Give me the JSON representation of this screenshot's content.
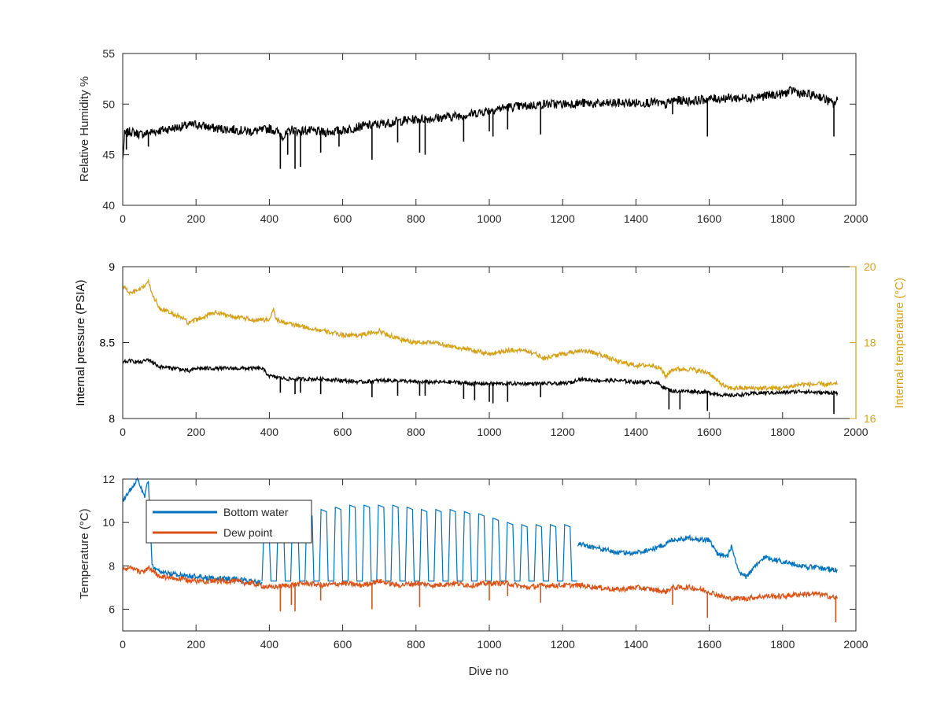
{
  "chart_data": [
    {
      "type": "line",
      "xlabel": "",
      "ylabel": "Relative Humidity %",
      "xlim": [
        0,
        2000
      ],
      "ylim": [
        40,
        55
      ],
      "xticks": [
        "0",
        "200",
        "400",
        "600",
        "800",
        "1000",
        "1200",
        "1400",
        "1600",
        "1800",
        "2000"
      ],
      "yticks": [
        "40",
        "45",
        "50",
        "55"
      ],
      "series": [
        {
          "name": "",
          "color": "#000000",
          "x": [
            0,
            5,
            20,
            50,
            100,
            150,
            200,
            250,
            300,
            350,
            380,
            400,
            420,
            440,
            460,
            480,
            500,
            550,
            600,
            650,
            700,
            750,
            800,
            850,
            900,
            950,
            1000,
            1050,
            1100,
            1150,
            1200,
            1250,
            1300,
            1350,
            1400,
            1450,
            1480,
            1500,
            1550,
            1600,
            1650,
            1700,
            1750,
            1800,
            1830,
            1850,
            1900,
            1940,
            1950
          ],
          "y": [
            44.5,
            47.0,
            47.3,
            47.0,
            47.4,
            47.7,
            48.0,
            47.6,
            47.5,
            47.3,
            47.4,
            47.6,
            47.3,
            46.8,
            47.5,
            47.3,
            47.4,
            47.2,
            47.4,
            47.8,
            48.0,
            48.3,
            48.5,
            48.6,
            48.8,
            49.0,
            49.4,
            49.7,
            49.8,
            50.0,
            50.0,
            50.1,
            50.0,
            50.1,
            50.1,
            50.2,
            49.9,
            50.4,
            50.3,
            50.5,
            50.6,
            50.6,
            50.8,
            51.0,
            51.4,
            51.0,
            50.8,
            50.0,
            50.4
          ]
        }
      ],
      "spikes": {
        "x": [
          10,
          70,
          430,
          450,
          470,
          485,
          540,
          590,
          680,
          750,
          810,
          825,
          930,
          1000,
          1010,
          1050,
          1140,
          1500,
          1595,
          1940
        ],
        "y": [
          45.5,
          45.8,
          43.6,
          45.0,
          43.6,
          43.8,
          45.2,
          45.8,
          44.5,
          46.2,
          45.2,
          45.0,
          46.3,
          47.3,
          46.8,
          47.5,
          47.0,
          49.0,
          46.8,
          46.8
        ]
      }
    },
    {
      "type": "line",
      "xlabel": "",
      "ylabel": "Internal pressure (PSIA)",
      "ylabel_right": "Internal temperature (°C)",
      "xlim": [
        0,
        2000
      ],
      "ylim": [
        8,
        9
      ],
      "ylim_right": [
        16,
        20
      ],
      "xticks": [
        "0",
        "200",
        "400",
        "600",
        "800",
        "1000",
        "1200",
        "1400",
        "1600",
        "1800",
        "2000"
      ],
      "yticks": [
        "8",
        "8.5",
        "9"
      ],
      "yticks_right": [
        "16",
        "18",
        "20"
      ],
      "series": [
        {
          "name": "",
          "axis": "right",
          "color": "#D4A017",
          "x": [
            0,
            20,
            50,
            70,
            80,
            100,
            150,
            170,
            180,
            200,
            250,
            300,
            350,
            400,
            410,
            420,
            450,
            500,
            550,
            600,
            650,
            700,
            750,
            800,
            850,
            900,
            950,
            1000,
            1050,
            1100,
            1150,
            1200,
            1250,
            1300,
            1350,
            1400,
            1450,
            1470,
            1480,
            1500,
            1550,
            1600,
            1620,
            1650,
            1700,
            1750,
            1800,
            1850,
            1900,
            1950
          ],
          "y": [
            19.5,
            19.3,
            19.4,
            19.6,
            19.3,
            18.9,
            18.7,
            18.6,
            18.5,
            18.6,
            18.8,
            18.7,
            18.6,
            18.6,
            18.9,
            18.6,
            18.5,
            18.4,
            18.3,
            18.2,
            18.2,
            18.3,
            18.1,
            18.0,
            18.0,
            17.9,
            17.8,
            17.7,
            17.8,
            17.8,
            17.6,
            17.7,
            17.8,
            17.7,
            17.5,
            17.4,
            17.4,
            17.3,
            17.1,
            17.3,
            17.3,
            17.2,
            17.0,
            16.8,
            16.8,
            16.8,
            16.8,
            16.9,
            16.9,
            16.9
          ]
        },
        {
          "name": "",
          "axis": "left",
          "color": "#000000",
          "x": [
            0,
            20,
            50,
            70,
            100,
            150,
            180,
            200,
            250,
            300,
            350,
            380,
            400,
            450,
            500,
            550,
            600,
            650,
            700,
            750,
            800,
            850,
            900,
            950,
            1000,
            1050,
            1100,
            1150,
            1200,
            1230,
            1240,
            1300,
            1350,
            1400,
            1450,
            1460,
            1480,
            1500,
            1550,
            1600,
            1650,
            1700,
            1750,
            1800,
            1850,
            1900,
            1950
          ],
          "y": [
            8.37,
            8.38,
            8.37,
            8.39,
            8.34,
            8.33,
            8.31,
            8.33,
            8.33,
            8.33,
            8.33,
            8.33,
            8.28,
            8.26,
            8.26,
            8.26,
            8.25,
            8.24,
            8.25,
            8.25,
            8.24,
            8.24,
            8.24,
            8.23,
            8.23,
            8.23,
            8.23,
            8.23,
            8.23,
            8.24,
            8.26,
            8.25,
            8.25,
            8.24,
            8.24,
            8.23,
            8.2,
            8.18,
            8.18,
            8.17,
            8.15,
            8.16,
            8.17,
            8.17,
            8.18,
            8.17,
            8.17
          ]
        }
      ],
      "spikes": {
        "x": [
          430,
          470,
          485,
          540,
          680,
          750,
          810,
          825,
          930,
          960,
          1000,
          1010,
          1050,
          1140,
          1490,
          1520,
          1595,
          1940
        ],
        "y": [
          8.17,
          8.16,
          8.17,
          8.16,
          8.14,
          8.15,
          8.15,
          8.15,
          8.13,
          8.12,
          8.11,
          8.1,
          8.11,
          8.14,
          8.06,
          8.06,
          8.05,
          8.03
        ]
      }
    },
    {
      "type": "line",
      "xlabel": "Dive no",
      "ylabel": "Temperature (°C)",
      "xlim": [
        0,
        2000
      ],
      "ylim": [
        5,
        12
      ],
      "xticks": [
        "0",
        "200",
        "400",
        "600",
        "800",
        "1000",
        "1200",
        "1400",
        "1600",
        "1800",
        "2000"
      ],
      "yticks": [
        "6",
        "8",
        "10",
        "12"
      ],
      "legend_position": "top-left",
      "series": [
        {
          "name": "Bottom water",
          "color": "#0072BD",
          "x": [
            0,
            20,
            40,
            60,
            70,
            80,
            100,
            150,
            200,
            250,
            300,
            350,
            380,
            1250,
            1300,
            1350,
            1400,
            1450,
            1480,
            1500,
            1550,
            1580,
            1600,
            1620,
            1650,
            1660,
            1680,
            1700,
            1750,
            1800,
            1850,
            1900,
            1950
          ],
          "y": [
            11.0,
            11.5,
            12.0,
            11.2,
            12.0,
            8.0,
            7.7,
            7.6,
            7.5,
            7.4,
            7.4,
            7.3,
            7.2,
            9.0,
            8.8,
            8.6,
            8.6,
            8.8,
            9.0,
            9.2,
            9.3,
            9.2,
            9.2,
            8.6,
            8.4,
            8.9,
            7.7,
            7.5,
            8.4,
            8.2,
            8.0,
            7.9,
            7.8
          ]
        },
        {
          "name": "Dew point",
          "color": "#D95319",
          "x": [
            0,
            20,
            50,
            70,
            100,
            150,
            200,
            250,
            300,
            350,
            400,
            450,
            500,
            550,
            600,
            650,
            700,
            750,
            800,
            850,
            900,
            950,
            1000,
            1050,
            1100,
            1150,
            1200,
            1250,
            1300,
            1350,
            1400,
            1450,
            1480,
            1500,
            1550,
            1600,
            1650,
            1700,
            1750,
            1800,
            1850,
            1900,
            1950
          ],
          "y": [
            7.8,
            7.9,
            7.7,
            7.9,
            7.5,
            7.4,
            7.3,
            7.3,
            7.3,
            7.2,
            7.0,
            7.1,
            7.2,
            7.1,
            7.2,
            7.1,
            7.3,
            7.1,
            7.2,
            7.1,
            7.2,
            7.1,
            7.2,
            7.2,
            7.0,
            7.1,
            7.1,
            7.1,
            7.0,
            6.9,
            7.0,
            6.9,
            6.8,
            7.0,
            7.0,
            6.8,
            6.5,
            6.5,
            6.6,
            6.6,
            6.7,
            6.7,
            6.5
          ]
        }
      ],
      "oscillation": {
        "cycles_x": [
          380,
          1240
        ],
        "cycle_peaks": [
          9.5,
          10.0,
          10.2,
          10.4,
          10.6,
          10.7,
          10.8,
          10.8,
          10.8,
          10.8,
          10.7,
          10.6,
          10.6,
          10.6,
          10.5,
          10.4,
          10.2,
          10.0,
          9.9,
          9.9,
          9.9,
          9.9
        ],
        "cycle_low": 7.3
      },
      "spikes": {
        "x": [
          430,
          460,
          470,
          540,
          680,
          810,
          1000,
          1050,
          1140,
          1500,
          1595,
          1945
        ],
        "y": [
          5.9,
          6.2,
          5.9,
          6.4,
          6.0,
          6.1,
          6.4,
          6.6,
          6.3,
          6.2,
          5.6,
          5.4
        ]
      }
    }
  ]
}
